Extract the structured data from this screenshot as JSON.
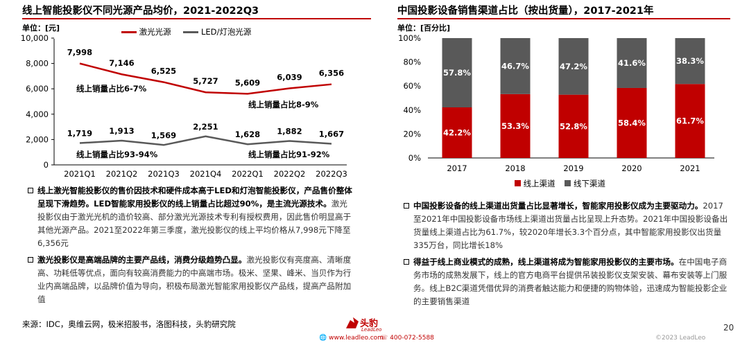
{
  "left": {
    "title": "线上智能投影仪不同光源产品均价，2021-2022Q3",
    "unit": "单位：[元]",
    "chart_data": {
      "type": "line",
      "categories": [
        "2021Q1",
        "2021Q2",
        "2021Q3",
        "2021Q4",
        "2022Q1",
        "2022Q2",
        "2022Q3"
      ],
      "series": [
        {
          "name": "激光光源",
          "values": [
            7998,
            7146,
            6525,
            5727,
            5609,
            6039,
            6356
          ],
          "labels": [
            "7,998",
            "7,146",
            "6,525",
            "5,727",
            "5,609",
            "6,039",
            "6,356"
          ],
          "color": "#c00000"
        },
        {
          "name": "LED/灯泡光源",
          "values": [
            1719,
            1913,
            1569,
            2251,
            1628,
            1882,
            1667
          ],
          "labels": [
            "1,719",
            "1,913",
            "1,569",
            "2,251",
            "1,628",
            "1,882",
            "1,667"
          ],
          "color": "#595959"
        }
      ],
      "ylim": [
        0,
        10000
      ],
      "yticks": [
        0,
        2000,
        4000,
        6000,
        8000,
        10000
      ],
      "ytick_labels": [
        "0",
        "2,000",
        "4,000",
        "6,000",
        "8,000",
        "10,000"
      ],
      "legend_position": "top",
      "annotations": [
        "线上销量占比6-7%",
        "线上销量占比8-9%",
        "线上销量占比93-94%",
        "线上销量占比91-92%"
      ]
    },
    "bullets": [
      {
        "head": "线上激光智能投影仪的售价因技术和硬件成本高于LED和灯泡智能投影仪，产品售价整体呈现下滑趋势。LED智能家用投影仪的线上销量占比超过90%，是主流光源技术。",
        "body": "激光投影仪由于激光光机的造价较高、部分激光光源技术专利有授权费用，因此售价明显高于其他光源产品。2021至2022年第三季度，激光投影仪的线上平均价格从7,998元下降至6,356元"
      },
      {
        "head": "激光投影仪是高端品牌的主要产品线，消费分级趋势凸显。",
        "body": "激光投影仪有亮度高、清晰度高、功耗低等优点，面向有较高消费能力的中高端市场。极米、坚果、峰米、当贝作为行业内高端品牌，以品牌价值为导向，积极布局激光智能家用投影仪产品线，提高产品附加值"
      }
    ]
  },
  "right": {
    "title": "中国投影设备销售渠道占比（按出货量），2017-2021年",
    "unit": "单位：[百分比]",
    "chart_data": {
      "type": "bar",
      "stacked": true,
      "categories": [
        "2017",
        "2018",
        "2019",
        "2020",
        "2021"
      ],
      "series": [
        {
          "name": "线上渠道",
          "values": [
            42.2,
            53.3,
            52.8,
            58.4,
            61.7
          ],
          "labels": [
            "42.2%",
            "53.3%",
            "52.8%",
            "58.4%",
            "61.7%"
          ],
          "color": "#c00000"
        },
        {
          "name": "线下渠道",
          "values": [
            57.8,
            46.7,
            47.2,
            41.6,
            38.3
          ],
          "labels": [
            "57.8%",
            "46.7%",
            "47.2%",
            "41.6%",
            "38.3%"
          ],
          "color": "#595959"
        }
      ],
      "ylim": [
        0,
        100
      ],
      "yticks": [
        0,
        20,
        40,
        60,
        80,
        100
      ],
      "ytick_labels": [
        "0%",
        "20%",
        "40%",
        "60%",
        "80%",
        "100%"
      ],
      "legend_position": "bottom"
    },
    "bullets": [
      {
        "head": "中国投影设备的线上渠道出货量占比显著增长，智能家用投影仪成为主要驱动力。",
        "body": "2017至2021年中国投影设备市场线上渠道出货量占比呈现上升态势。2021年中国投影设备出货量线上渠道占比为61.7%，较2020年增长3.3个百分点，其中智能家用投影仪出货量335万台，同比增长18%"
      },
      {
        "head": "得益于线上商业模式的成熟，线上渠道将成为智能家用投影仪的主要市场。",
        "body": "在中国电子商务市场的成熟发展下，线上的官方电商平台提供吊装投影仪支架安装、幕布安装等上门服务。线上B2C渠道凭借优异的消费者触达能力和便捷的购物体验，迅速成为智能投影企业的主要销售渠道"
      }
    ]
  },
  "footer": {
    "source": "来源：IDC，奥维云网，极米招股书，洛图科技，头豹研究院",
    "page": "20",
    "site": "www.leadleo.com",
    "phone": "400-072-5588",
    "copyright": "©2023 LeadLeo",
    "brand": "头豹",
    "brand_sub": "LeadLeo"
  }
}
